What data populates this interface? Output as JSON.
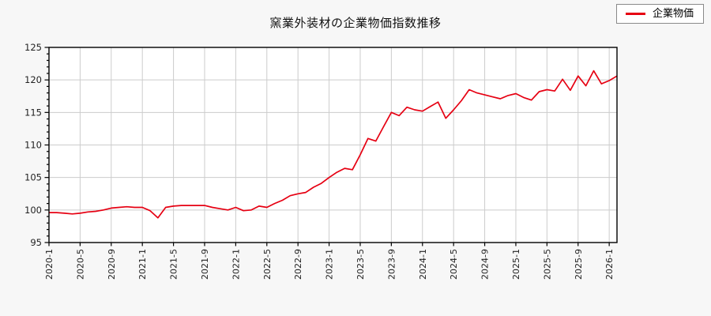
{
  "page": {
    "background": "#f7f7f7",
    "plot_background": "#ffffff",
    "grid_color": "#cccccc",
    "axis_color": "#000000",
    "tick_label_color": "#222222"
  },
  "title": "窯業外装材の企業物価指数推移",
  "legend": {
    "label": "企業物価",
    "line_color": "#e60012"
  },
  "chart_data": {
    "type": "line",
    "title": "窯業外装材の企業物価指数推移",
    "xlabel": "",
    "ylabel": "",
    "grid": true,
    "legend_position": "top-right",
    "ylim": [
      95,
      125
    ],
    "yticks": [
      95,
      100,
      105,
      110,
      115,
      120,
      125
    ],
    "ytick_labels": [
      "95",
      "100",
      "105",
      "110",
      "115",
      "120",
      "125"
    ],
    "y_minor_step": 1,
    "x": [
      "2020-1",
      "2020-2",
      "2020-3",
      "2020-4",
      "2020-5",
      "2020-6",
      "2020-7",
      "2020-8",
      "2020-9",
      "2020-10",
      "2020-11",
      "2020-12",
      "2021-1",
      "2021-2",
      "2021-3",
      "2021-4",
      "2021-5",
      "2021-6",
      "2021-7",
      "2021-8",
      "2021-9",
      "2021-10",
      "2021-11",
      "2021-12",
      "2022-1",
      "2022-2",
      "2022-3",
      "2022-4",
      "2022-5",
      "2022-6",
      "2022-7",
      "2022-8",
      "2022-9",
      "2022-10",
      "2022-11",
      "2022-12",
      "2023-1",
      "2023-2",
      "2023-3",
      "2023-4",
      "2023-5",
      "2023-6",
      "2023-7",
      "2023-8",
      "2023-9",
      "2023-10",
      "2023-11",
      "2023-12",
      "2024-1",
      "2024-2",
      "2024-3",
      "2024-4",
      "2024-5",
      "2024-6",
      "2024-7",
      "2024-8",
      "2024-9",
      "2024-10",
      "2024-11",
      "2024-12",
      "2025-1",
      "2025-2",
      "2025-3",
      "2025-4",
      "2025-5",
      "2025-6",
      "2025-7",
      "2025-8",
      "2025-9",
      "2025-10",
      "2025-11",
      "2025-12",
      "2026-1",
      "2026-2"
    ],
    "x_tick_every": 4,
    "x_tick_labels": [
      "2020-1",
      "2020-5",
      "2020-9",
      "2021-1",
      "2021-5",
      "2021-9",
      "2022-1",
      "2022-5",
      "2022-9",
      "2023-1",
      "2023-5",
      "2023-9",
      "2024-1",
      "2024-5",
      "2024-9",
      "2025-1",
      "2025-5",
      "2025-9",
      "2026-1"
    ],
    "series": [
      {
        "name": "企業物価",
        "color": "#e60012",
        "values": [
          99.6,
          99.6,
          99.5,
          99.4,
          99.5,
          99.7,
          99.8,
          100.0,
          100.3,
          100.4,
          100.5,
          100.4,
          100.4,
          99.9,
          98.8,
          100.4,
          100.6,
          100.7,
          100.7,
          100.7,
          100.7,
          100.4,
          100.2,
          100.0,
          100.4,
          99.9,
          100.0,
          100.6,
          100.4,
          101.0,
          101.5,
          102.2,
          102.5,
          102.7,
          103.5,
          104.1,
          105.0,
          105.8,
          106.4,
          106.2,
          108.5,
          111.0,
          110.6,
          112.8,
          115.0,
          114.5,
          115.8,
          115.4,
          115.2,
          115.9,
          116.6,
          114.1,
          115.4,
          116.8,
          118.5,
          118.0,
          117.7,
          117.4,
          117.1,
          117.6,
          117.9,
          117.3,
          116.9,
          118.2,
          118.5,
          118.3,
          120.1,
          118.4,
          120.6,
          119.1,
          121.4,
          119.4,
          119.9,
          120.6
        ]
      }
    ]
  }
}
